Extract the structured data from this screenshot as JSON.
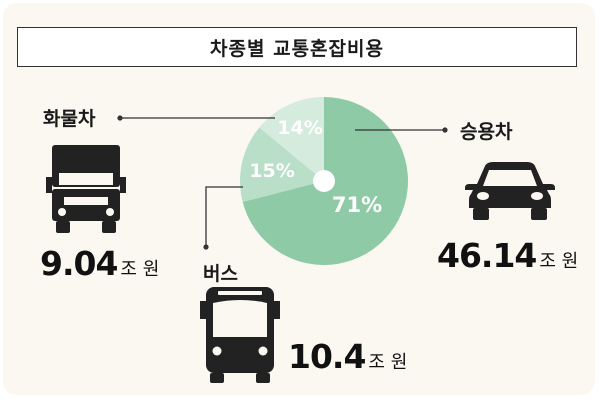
{
  "title": "차종별 교통혼잡비용",
  "colors": {
    "passenger": "#8fcaa7",
    "bus": "#b9dfc8",
    "truck": "#d4ebdd",
    "leader": "#333333"
  },
  "chart_data": {
    "type": "pie",
    "title": "차종별 교통혼잡비용",
    "slices": [
      {
        "name": "승용차",
        "percent": 71,
        "percent_label": "71%",
        "amount": "46.14",
        "unit": "조 원",
        "icon": "car-icon"
      },
      {
        "name": "버스",
        "percent": 15,
        "percent_label": "15%",
        "amount": "10.4",
        "unit": "조 원",
        "icon": "bus-icon"
      },
      {
        "name": "화물차",
        "percent": 14,
        "percent_label": "14%",
        "amount": "9.04",
        "unit": "조 원",
        "icon": "truck-icon"
      }
    ]
  }
}
